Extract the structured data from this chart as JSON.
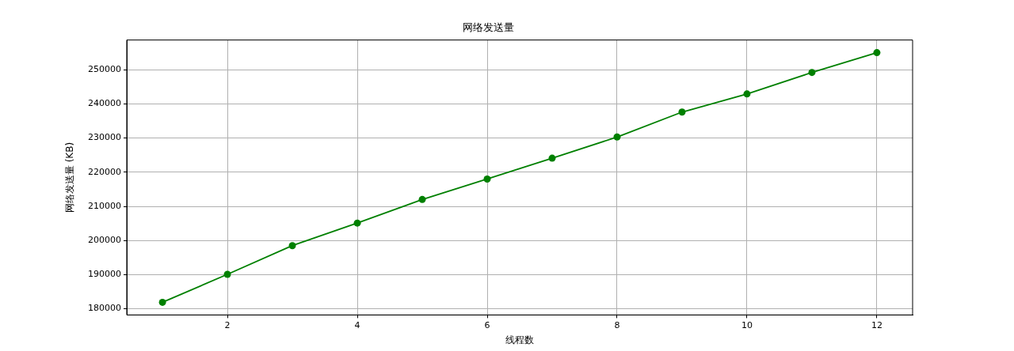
{
  "chart_data": {
    "type": "line",
    "title": "网络发送量",
    "xlabel": "线程数",
    "ylabel": "网络发送量 (KB)",
    "x": [
      1,
      2,
      3,
      4,
      5,
      6,
      7,
      8,
      9,
      10,
      11,
      12
    ],
    "series": [
      {
        "color": "#008000",
        "values": [
          181900,
          190100,
          198500,
          205100,
          212000,
          218000,
          224100,
          230300,
          237600,
          242900,
          249200,
          255000
        ]
      }
    ],
    "xlim": [
      0.45,
      12.55
    ],
    "xticks": [
      2,
      4,
      6,
      8,
      10,
      12
    ],
    "ylim": [
      178200,
      258700
    ],
    "yticks": [
      180000,
      190000,
      200000,
      210000,
      220000,
      230000,
      240000,
      250000
    ],
    "grid": true,
    "legend": false,
    "marker": "circle",
    "line_style": "solid"
  }
}
